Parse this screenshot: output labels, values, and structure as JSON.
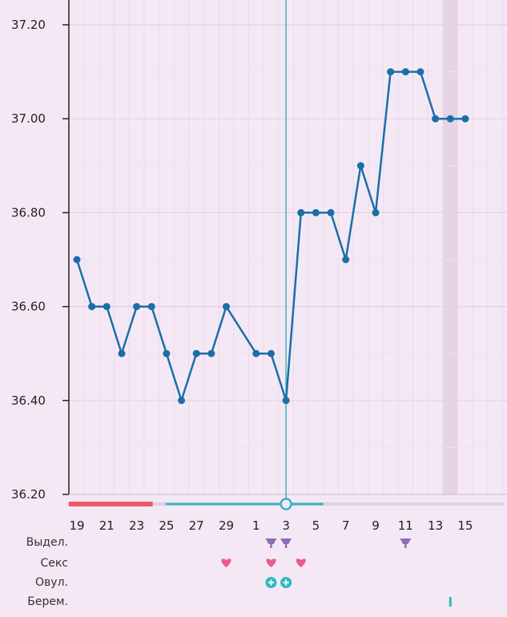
{
  "chart_data": {
    "type": "line",
    "title": "",
    "xlabel": "",
    "ylabel": "",
    "ylim": [
      36.2,
      37.25
    ],
    "y_ticks": [
      "36.20",
      "36.40",
      "36.60",
      "36.80",
      "37.00",
      "37.20"
    ],
    "x_tick_labels": [
      "19",
      "21",
      "23",
      "25",
      "27",
      "29",
      "1",
      "3",
      "5",
      "7",
      "9",
      "11",
      "13",
      "15"
    ],
    "days": [
      "19",
      "20",
      "21",
      "22",
      "23",
      "24",
      "25",
      "26",
      "27",
      "28",
      "29",
      "30",
      "1",
      "2",
      "3",
      "4",
      "5",
      "6",
      "7",
      "8",
      "9",
      "10",
      "11",
      "12",
      "13",
      "14",
      "15",
      "16",
      "17"
    ],
    "series": [
      {
        "values": [
          36.7,
          36.6,
          36.6,
          36.5,
          36.6,
          36.6,
          36.5,
          36.4,
          36.5,
          36.5,
          36.6,
          null,
          36.5,
          36.5,
          36.4,
          36.8,
          36.8,
          36.8,
          36.7,
          36.9,
          36.8,
          37.1,
          37.1,
          37.1,
          37.0,
          37.0,
          37.0,
          null,
          null
        ]
      }
    ],
    "ovulation_day": "3",
    "highlighted_day": "14",
    "grid": true,
    "colors": {
      "line": "#1a6fa8",
      "ovulation_line": "#3bb4c1",
      "period_bar": "#ec5a64",
      "cycle_bar": "#3bb4c1",
      "future_bar": "#e0d0e4",
      "heart": "#ec5a8e",
      "discharge": "#8e6bb8",
      "ovulation_test": "#2ebcc0",
      "pregnancy_test": "#2ebcc0",
      "highlight": "#e6d4e6"
    },
    "cycle_bar": {
      "period_start": "19",
      "period_end": "24",
      "cycle_start": "25",
      "cycle_end": "5",
      "future_end": "17"
    },
    "markers": {
      "discharge": [
        "2",
        "3",
        "11"
      ],
      "sex": [
        "29",
        "2",
        "4"
      ],
      "ovulation_test": [
        "2",
        "3"
      ],
      "pregnancy_test": [
        "14"
      ]
    },
    "row_labels": {
      "discharge": "Выдел.",
      "sex": "Секс",
      "ovulation": "Овул.",
      "pregnancy": "Берем."
    }
  }
}
